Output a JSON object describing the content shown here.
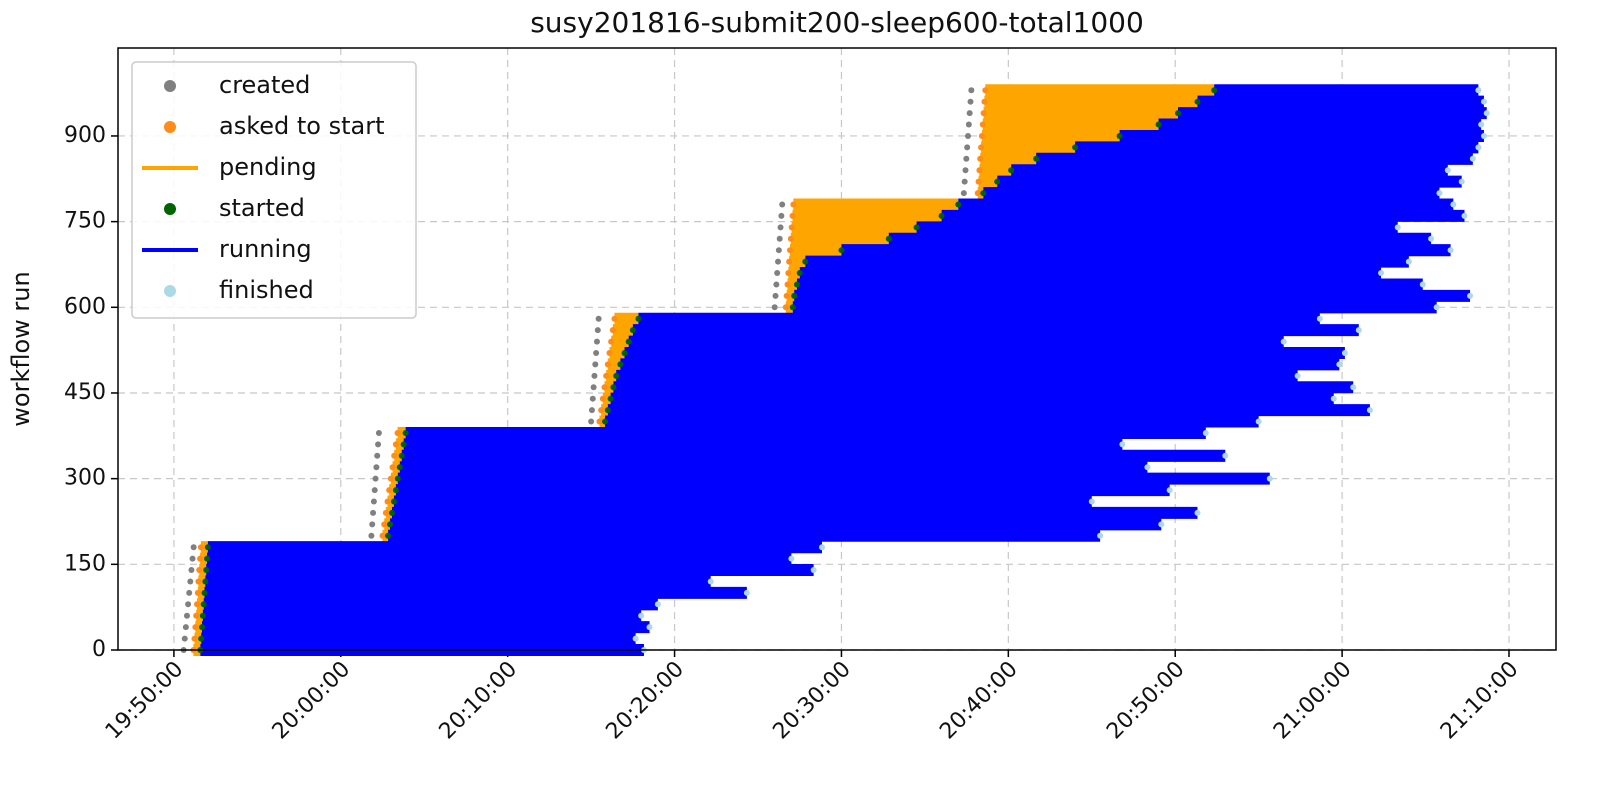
{
  "chart_data": {
    "type": "timeline",
    "title": "susy201816-submit200-sleep600-total1000",
    "y_label": "workflow run",
    "runs": [
      0,
      20,
      40,
      60,
      80,
      100,
      120,
      140,
      160,
      180,
      200,
      220,
      240,
      260,
      280,
      300,
      320,
      340,
      360,
      380,
      400,
      420,
      440,
      460,
      480,
      500,
      520,
      540,
      560,
      580,
      600,
      620,
      640,
      660,
      680,
      700,
      720,
      740,
      760,
      780,
      800,
      820,
      840,
      860,
      880,
      900,
      920,
      940,
      960,
      980
    ],
    "series": [
      {
        "name": "created",
        "style": "dot",
        "color": "#808080",
        "values": [
          "19:50:35",
          "19:50:39",
          "19:50:43",
          "19:50:47",
          "19:50:51",
          "19:50:55",
          "19:50:59",
          "19:51:03",
          "19:51:07",
          "19:51:11",
          "20:01:50",
          "20:01:53",
          "20:01:56",
          "20:01:59",
          "20:02:02",
          "20:02:05",
          "20:02:08",
          "20:02:11",
          "20:02:14",
          "20:02:17",
          "20:15:00",
          "20:15:03",
          "20:15:06",
          "20:15:09",
          "20:15:12",
          "20:15:15",
          "20:15:18",
          "20:15:21",
          "20:15:24",
          "20:15:27",
          "20:26:00",
          "20:26:03",
          "20:26:06",
          "20:26:09",
          "20:26:12",
          "20:26:15",
          "20:26:18",
          "20:26:21",
          "20:26:24",
          "20:26:27",
          "20:37:20",
          "20:37:23",
          "20:37:26",
          "20:37:29",
          "20:37:32",
          "20:37:35",
          "20:37:38",
          "20:37:41",
          "20:37:44",
          "20:37:47"
        ]
      },
      {
        "name": "asked to start",
        "style": "dot",
        "color": "#ff8c1a",
        "values": [
          "19:51:10",
          "19:51:14",
          "19:51:17",
          "19:51:20",
          "19:51:23",
          "19:51:26",
          "19:51:28",
          "19:51:31",
          "19:51:34",
          "19:51:37",
          "20:02:30",
          "20:02:36",
          "20:02:42",
          "20:02:48",
          "20:02:54",
          "20:03:00",
          "20:03:06",
          "20:03:12",
          "20:03:18",
          "20:03:24",
          "20:15:30",
          "20:15:36",
          "20:15:42",
          "20:15:48",
          "20:15:54",
          "20:16:00",
          "20:16:06",
          "20:16:12",
          "20:16:18",
          "20:16:24",
          "20:26:40",
          "20:26:43",
          "20:26:46",
          "20:26:49",
          "20:26:52",
          "20:26:55",
          "20:26:58",
          "20:27:01",
          "20:27:04",
          "20:27:07",
          "20:38:10",
          "20:38:13",
          "20:38:16",
          "20:38:19",
          "20:38:22",
          "20:38:25",
          "20:38:28",
          "20:38:31",
          "20:38:34",
          "20:38:37"
        ]
      },
      {
        "name": "pending",
        "style": "line",
        "color": "#ffa500"
      },
      {
        "name": "started",
        "style": "dot",
        "color": "#006400",
        "values": [
          "19:51:35",
          "19:51:38",
          "19:51:41",
          "19:51:44",
          "19:51:47",
          "19:51:50",
          "19:51:53",
          "19:51:56",
          "19:51:59",
          "19:52:02",
          "20:02:50",
          "20:02:57",
          "20:03:04",
          "20:03:11",
          "20:03:18",
          "20:03:25",
          "20:03:32",
          "20:03:39",
          "20:03:46",
          "20:03:53",
          "20:15:50",
          "20:16:00",
          "20:16:10",
          "20:16:20",
          "20:16:30",
          "20:16:45",
          "20:17:00",
          "20:17:15",
          "20:17:30",
          "20:17:50",
          "20:27:05",
          "20:27:10",
          "20:27:20",
          "20:27:30",
          "20:27:50",
          "20:30:00",
          "20:32:50",
          "20:34:30",
          "20:36:00",
          "20:37:00",
          "20:38:30",
          "20:39:20",
          "20:40:10",
          "20:41:40",
          "20:44:00",
          "20:46:40",
          "20:49:00",
          "20:50:10",
          "20:51:20",
          "20:52:20"
        ]
      },
      {
        "name": "running",
        "style": "line",
        "color": "#0000ff"
      },
      {
        "name": "finished",
        "style": "dot",
        "color": "#add8e6",
        "values": [
          "20:18:10",
          "20:17:40",
          "20:18:30",
          "20:18:00",
          "20:19:00",
          "20:24:20",
          "20:22:10",
          "20:28:20",
          "20:27:00",
          "20:28:50",
          "20:45:30",
          "20:49:10",
          "20:51:20",
          "20:45:00",
          "20:49:40",
          "20:55:40",
          "20:48:20",
          "20:53:00",
          "20:46:50",
          "20:51:50",
          "20:55:00",
          "21:01:40",
          "20:59:30",
          "21:00:40",
          "20:57:20",
          "20:59:50",
          "21:00:10",
          "20:56:30",
          "21:01:00",
          "20:58:40",
          "21:05:40",
          "21:07:40",
          "21:04:50",
          "21:02:20",
          "21:04:00",
          "21:06:30",
          "21:05:20",
          "21:03:20",
          "21:07:20",
          "21:06:40",
          "21:05:50",
          "21:07:10",
          "21:06:20",
          "21:07:50",
          "21:08:10",
          "21:08:30",
          "21:08:20",
          "21:08:40",
          "21:08:30",
          "21:08:10"
        ]
      }
    ],
    "xlim": [
      "19:46:39",
      "21:12:49"
    ],
    "xticks": [
      "19:50:00",
      "20:00:00",
      "20:10:00",
      "20:20:00",
      "20:30:00",
      "20:40:00",
      "20:50:00",
      "21:00:00",
      "21:10:00"
    ],
    "ylim": [
      0,
      1054
    ],
    "yticks": [
      0,
      150,
      300,
      450,
      600,
      750,
      900
    ],
    "grid": true,
    "legend": "upper left"
  }
}
